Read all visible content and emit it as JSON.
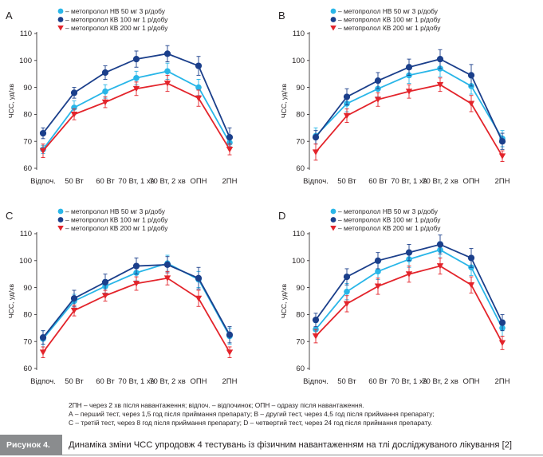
{
  "colors": {
    "nb50": "#29b6e8",
    "kb100": "#1b3f8b",
    "kb200": "#e3242b",
    "axis": "#231f20"
  },
  "legend": [
    {
      "label": "– метопролол НВ 50 мг 3 р/добу",
      "marker": "circle",
      "color_key": "nb50"
    },
    {
      "label": "– метопролол КВ 100 мг 1 р/добу",
      "marker": "circle",
      "color_key": "kb100"
    },
    {
      "label": "– метопролол КВ 200 мг 1 р/добу",
      "marker": "triangle-down",
      "color_key": "kb200"
    }
  ],
  "chart_data": [
    {
      "type": "line",
      "panel_label": "A",
      "ylabel": "ЧСС, уд/хв",
      "ylim": [
        60,
        110
      ],
      "yticks": [
        60,
        70,
        80,
        90,
        100,
        110
      ],
      "categories": [
        "Відпоч.",
        "50 Вт",
        "60 Вт",
        "70 Вт, 1 хв",
        "70 Вт, 2 хв",
        "ОПН",
        "2ПН"
      ],
      "series": [
        {
          "name": "– метопролол НВ 50 мг 3 р/добу",
          "values": [
            67,
            82.5,
            88.5,
            93.5,
            96,
            90,
            69.5
          ],
          "err": [
            1.5,
            2.5,
            2.5,
            2.5,
            3,
            3,
            2
          ]
        },
        {
          "name": "– метопролол КВ 100 мг 1 р/добу",
          "values": [
            73,
            88,
            95.5,
            100.5,
            102.5,
            98,
            71.5
          ],
          "err": [
            2,
            2,
            2.5,
            3,
            3,
            3.5,
            3.5
          ]
        },
        {
          "name": "– метопролол КВ 200 мг 1 р/добу",
          "values": [
            66.5,
            80,
            84.5,
            89.5,
            91.5,
            86,
            67
          ],
          "err": [
            2.5,
            2,
            2,
            2.5,
            3,
            3,
            2
          ]
        }
      ]
    },
    {
      "type": "line",
      "panel_label": "B",
      "ylabel": "ЧСС, уд/хв",
      "ylim": [
        60,
        110
      ],
      "yticks": [
        60,
        70,
        80,
        90,
        100,
        110
      ],
      "categories": [
        "Відпоч.",
        "50 Вт",
        "60 Вт",
        "70 Вт, 1 хв",
        "70 Вт, 2 хв",
        "ОПН",
        "2ПН"
      ],
      "series": [
        {
          "name": "– метопролол НВ 50 мг 3 р/добу",
          "values": [
            72,
            84,
            89.5,
            94.5,
            97,
            90.5,
            71
          ],
          "err": [
            3,
            3,
            3,
            3,
            3,
            3,
            3
          ]
        },
        {
          "name": "– метопролол КВ 100 мг 1 р/добу",
          "values": [
            71.5,
            86.5,
            92.5,
            97.5,
            100.5,
            94.5,
            70
          ],
          "err": [
            2.5,
            3,
            3,
            3,
            3.5,
            4,
            3
          ]
        },
        {
          "name": "– метопролол КВ 200 мг 1 р/добу",
          "values": [
            66,
            79.5,
            85.5,
            88.5,
            91,
            84,
            64.5
          ],
          "err": [
            3,
            2.5,
            2.5,
            2.5,
            2.5,
            3,
            2
          ]
        }
      ]
    },
    {
      "type": "line",
      "panel_label": "C",
      "ylabel": "ЧСС, уд/хв",
      "ylim": [
        60,
        110
      ],
      "yticks": [
        60,
        70,
        80,
        90,
        100,
        110
      ],
      "categories": [
        "Відпоч.",
        "50 Вт",
        "60 Вт",
        "70 Вт, 1 хв",
        "70 Вт, 2 хв",
        "ОПН",
        "2ПН"
      ],
      "series": [
        {
          "name": "– метопролол НВ 50 мг 3 р/добу",
          "values": [
            71,
            85,
            90.5,
            95.5,
            99,
            93,
            72
          ],
          "err": [
            3,
            2.5,
            2.5,
            3,
            3,
            3,
            3
          ]
        },
        {
          "name": "– метопролол КВ 100 мг 1 р/добу",
          "values": [
            71.5,
            86,
            92,
            98,
            98.5,
            93.5,
            72.5
          ],
          "err": [
            2.5,
            3,
            3,
            3,
            3,
            4,
            3
          ]
        },
        {
          "name": "– метопролол КВ 200 мг 1 р/добу",
          "values": [
            66,
            81.5,
            87,
            91.5,
            93.5,
            86,
            66
          ],
          "err": [
            2,
            2,
            2,
            2.5,
            2.5,
            3,
            2
          ]
        }
      ]
    },
    {
      "type": "line",
      "panel_label": "D",
      "ylabel": "ЧСС, уд/хв",
      "ylim": [
        60,
        110
      ],
      "yticks": [
        60,
        70,
        80,
        90,
        100,
        110
      ],
      "categories": [
        "Відпоч.",
        "50 Вт",
        "60 Вт",
        "70 Вт, 1 хв",
        "70 Вт, 2 хв",
        "ОПН",
        "2ПН"
      ],
      "series": [
        {
          "name": "– метопролол НВ 50 мг 3 р/добу",
          "values": [
            74.5,
            88.5,
            96,
            100.5,
            104,
            97.5,
            75
          ],
          "err": [
            2.5,
            3,
            3,
            3,
            3,
            3,
            3
          ]
        },
        {
          "name": "– метопролол КВ 100 мг 1 р/добу",
          "values": [
            78,
            94,
            100,
            103,
            106,
            101,
            77
          ],
          "err": [
            2.5,
            3,
            3,
            3,
            3.5,
            3.5,
            3
          ]
        },
        {
          "name": "– метопролол КВ 200 мг 1 р/добу",
          "values": [
            72,
            84,
            90.5,
            95,
            98,
            91,
            69.5
          ],
          "err": [
            2.5,
            3,
            3,
            3,
            3,
            3,
            2.5
          ]
        }
      ]
    }
  ],
  "footnotes": [
    "2ПН – через 2 хв після навантаження; відпоч. – відпочинок; ОПН – одразу після навантаження.",
    "А – перший тест, через 1,5 год після приймання препарату; B – другий тест, через 4,5 год після приймання препарату;",
    "С – третій тест, через 8 год після приймання препарату; D – четвертий тест, через 24 год після приймання препарату."
  ],
  "caption": {
    "label": "Рисунок 4.",
    "text": "Динаміка зміни ЧСС упродовж 4 тестувань із фізичним навантаженням на тлі досліджуваного лікування [2]"
  }
}
